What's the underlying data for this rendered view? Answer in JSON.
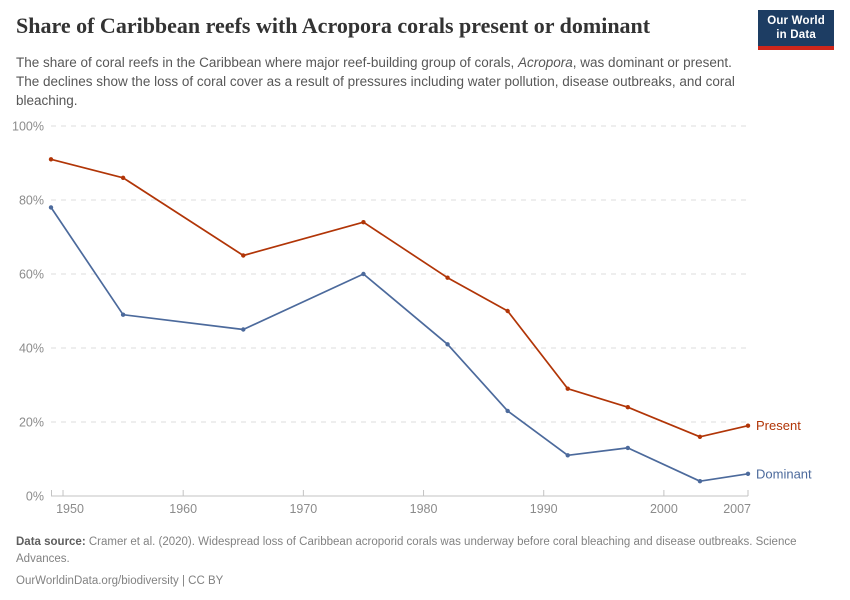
{
  "header": {
    "title": "Share of Caribbean reefs with Acropora corals present or dominant",
    "subtitle_part1": "The share of coral reefs in the Caribbean where major reef-building group of corals, ",
    "subtitle_italic": "Acropora",
    "subtitle_part2": ", was dominant or present. The declines show the loss of coral cover as a result of pressures including water pollution, disease outbreaks, and coral bleaching.",
    "logo": {
      "line1": "Our World",
      "line2": "in Data"
    }
  },
  "chart_data": {
    "type": "line",
    "x": [
      1949,
      1955,
      1965,
      1975,
      1982,
      1987,
      1992,
      1997,
      2003,
      2007
    ],
    "series": [
      {
        "name": "Present",
        "color": "#B13507",
        "values": [
          91,
          86,
          65,
          74,
          59,
          50,
          29,
          24,
          16,
          19
        ]
      },
      {
        "name": "Dominant",
        "color": "#4C6A9C",
        "values": [
          78,
          49,
          45,
          60,
          41,
          23,
          11,
          13,
          4,
          6
        ]
      }
    ],
    "title": "Share of Caribbean reefs with Acropora corals present or dominant",
    "xlabel": "",
    "ylabel": "",
    "xlim": [
      1949,
      2007
    ],
    "ylim": [
      0,
      100
    ],
    "x_ticks": [
      1950,
      1960,
      1970,
      1980,
      1990,
      2000,
      2007
    ],
    "y_ticks": [
      0,
      20,
      40,
      60,
      80,
      100
    ],
    "y_tick_suffix": "%",
    "grid": "horizontal-dashed",
    "legend_position": "line-end-labels"
  },
  "footer": {
    "source_label": "Data source:",
    "source_text": " Cramer et al. (2020). Widespread loss of Caribbean acroporid corals was underway before coral bleaching and disease outbreaks. Science Advances.",
    "link": "OurWorldinData.org/biodiversity",
    "separator": " | ",
    "license": "CC BY"
  },
  "colors": {
    "present": "#B13507",
    "dominant": "#4C6A9C",
    "grid": "#dedede",
    "axis": "#c3c3c3",
    "tick_text": "#8c8c8c",
    "logo_bg": "#1D3D63",
    "logo_stripe": "#CE261B"
  }
}
